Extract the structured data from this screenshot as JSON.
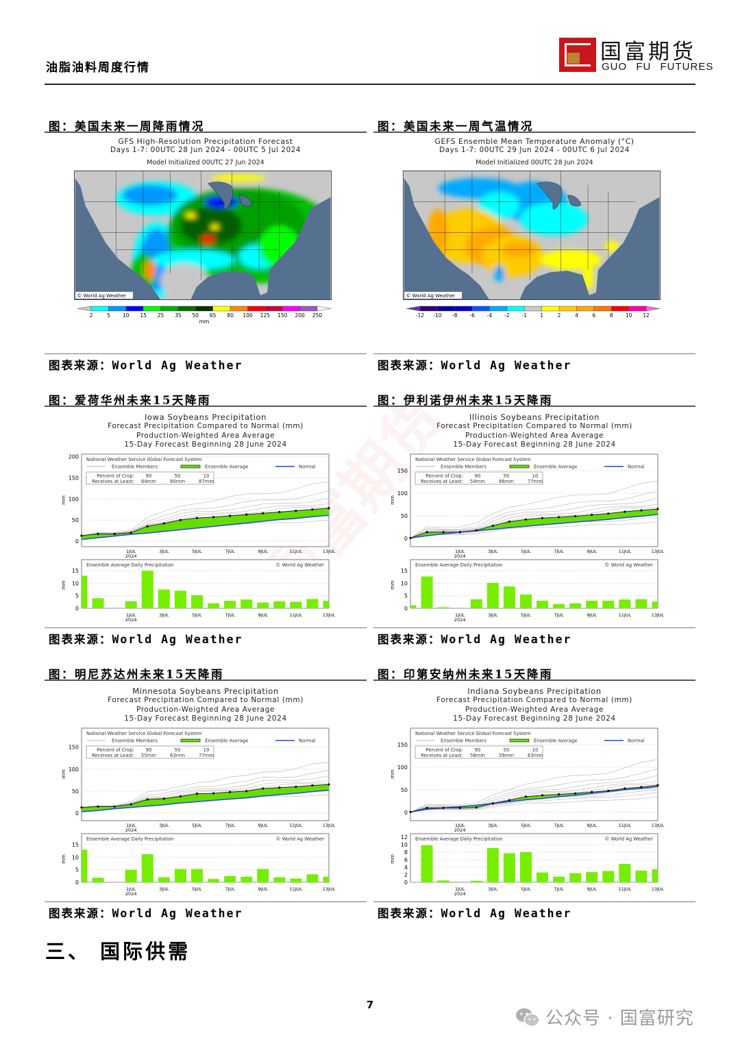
{
  "header": {
    "report_title": "油脂油料周度行情",
    "logo_cn": "国富期货",
    "logo_en": "GUO FU FUTURES",
    "brand_red": "#c8161d",
    "brand_gold": "#b8862e"
  },
  "figures": [
    {
      "caption": "图：美国未来一周降雨情况",
      "source": "图表来源：World Ag Weather",
      "map": {
        "title": "GFS High-Resolution Precipitation Forecast",
        "subtitle": "Days 1-7: 00UTC 28 Jun 2024 - 00UTC 5 Jul 2024",
        "init": "Model Initialized 00UTC 27 Jun 2024",
        "credit": "© World Ag Weather",
        "type": "precipitation"
      },
      "colorbar": {
        "labels": [
          "2",
          "5",
          "10",
          "15",
          "25",
          "35",
          "50",
          "65",
          "80",
          "100",
          "125",
          "150",
          "200",
          "250"
        ],
        "colors": [
          "#00ffff",
          "#0099ff",
          "#0000ff",
          "#00ff00",
          "#00b000",
          "#007000",
          "#003000",
          "#ffff00",
          "#ff8800",
          "#ff0000",
          "#cc0044",
          "#ff00ff",
          "#9955cc"
        ],
        "unit": "mm"
      }
    },
    {
      "caption": "图：美国未来一周气温情况",
      "source": "图表来源：World Ag Weather",
      "map": {
        "title": "GEFS Ensemble Mean Temperature Anomaly (°C)",
        "subtitle": "Days 1-7: 00UTC 29 Jun 2024 - 00UTC 6 Jul 2024",
        "init": "Model Initialized 00UTC 28 Jun 2024",
        "credit": "© World Ag Weather",
        "type": "temperature"
      },
      "colorbar": {
        "labels": [
          "-12",
          "-10",
          "-8",
          "-6",
          "-4",
          "-2",
          "-1",
          "1",
          "2",
          "4",
          "6",
          "8",
          "10",
          "12"
        ],
        "colors": [
          "#330077",
          "#000099",
          "#0000cc",
          "#0055ff",
          "#00aaff",
          "#00ffff",
          "#c8c8c8",
          "#ffff00",
          "#ffcc00",
          "#ffaa00",
          "#ff7700",
          "#ff0000",
          "#ff00aa"
        ],
        "unit": ""
      }
    }
  ],
  "chart_captions": [
    {
      "caption": "图：爱荷华州未来15天降雨",
      "source": "图表来源：World Ag Weather"
    },
    {
      "caption": "图：伊利诺伊州未来15天降雨",
      "source": "图表来源：World Ag Weather"
    },
    {
      "caption": "图：明尼苏达州未来15天降雨",
      "source": "图表来源：World Ag Weather"
    },
    {
      "caption": "图：印第安纳州未来15天降雨",
      "source": "图表来源：World Ag Weather"
    }
  ],
  "chart_common": {
    "x_ticks": [
      "1JUL",
      "3JUL",
      "5JUL",
      "7JUL",
      "9JUL",
      "11JUL",
      "13JUL"
    ],
    "x_tick_year": "2024",
    "ylabel": "mm",
    "legend_system": "National Weather Service Global Forecast System",
    "legend_members": "Ensemble Members",
    "legend_average": "Ensemble Average",
    "legend_normal": "Normal",
    "pct_label": "Percent of Crop:",
    "receives_label": "Receives at Least:",
    "daily_title": "Ensemble Average Daily Precipitation",
    "credit": "© World Ag Weather",
    "colors": {
      "average_fill": "#66dd00",
      "normal": "#2244ee",
      "members": "#bdbdbd",
      "bars": "#77ee00"
    }
  },
  "chart_data": [
    {
      "type": "line+bar",
      "title": "Iowa Soybeans Precipitation",
      "subtitle1": "Forecast Precipitation Compared to Normal (mm)",
      "subtitle2": "Production-Weighted Area Average",
      "subtitle3": "15-Day Forecast Beginning 28 June 2024",
      "dates": [
        "28JUN",
        "29JUN",
        "30JUN",
        "1JUL",
        "2JUL",
        "3JUL",
        "4JUL",
        "5JUL",
        "6JUL",
        "7JUL",
        "8JUL",
        "9JUL",
        "10JUL",
        "11JUL",
        "12JUL",
        "13JUL"
      ],
      "pct": [
        "90",
        "50",
        "10"
      ],
      "receives": [
        "64mm",
        "80mm",
        "87mm"
      ],
      "ensemble_average": [
        13,
        17,
        17,
        20,
        35,
        42,
        50,
        55,
        57,
        60,
        63,
        66,
        69,
        72,
        75,
        78
      ],
      "normal": [
        4,
        8,
        12,
        16,
        19,
        23,
        27,
        31,
        35,
        39,
        43,
        47,
        51,
        54,
        58,
        61
      ],
      "daily": [
        13,
        4,
        0,
        2.8,
        15,
        7.5,
        7,
        5.2,
        2,
        3,
        3.5,
        2.3,
        2.8,
        2.6,
        3.7,
        3
      ],
      "ylim": [
        -13,
        206
      ],
      "yticks": [
        0,
        50,
        100,
        150,
        200
      ],
      "daily_ylim": [
        0,
        19.4
      ],
      "daily_yticks": [
        0,
        5,
        10,
        15
      ]
    },
    {
      "type": "line+bar",
      "title": "Illinois Soybeans Precipitation",
      "subtitle1": "Forecast Precipitation Compared to Normal (mm)",
      "subtitle2": "Production-Weighted Area Average",
      "subtitle3": "15-Day Forecast Beginning 28 June 2024",
      "dates": [
        "28JUN",
        "29JUN",
        "30JUN",
        "1JUL",
        "2JUL",
        "3JUL",
        "4JUL",
        "5JUL",
        "6JUL",
        "7JUL",
        "8JUL",
        "9JUL",
        "10JUL",
        "11JUL",
        "12JUL",
        "13JUL"
      ],
      "pct": [
        "90",
        "50",
        "10"
      ],
      "receives": [
        "54mm",
        "66mm",
        "77mm"
      ],
      "ensemble_average": [
        1,
        14,
        14,
        14,
        18,
        28,
        37,
        42,
        45,
        47,
        49,
        52,
        55,
        59,
        62,
        65
      ],
      "normal": [
        1,
        6,
        10,
        14,
        17,
        20,
        24,
        27,
        30,
        33,
        36,
        39,
        42,
        46,
        49,
        53
      ],
      "daily": [
        1.2,
        12.7,
        0.4,
        0,
        3.6,
        10.1,
        8.7,
        5.5,
        3,
        1.7,
        2,
        3,
        3,
        3.5,
        3.6,
        2.7
      ],
      "ylim": [
        -18,
        186
      ],
      "yticks": [
        0,
        50,
        100,
        150
      ],
      "daily_ylim": [
        0,
        19.4
      ],
      "daily_yticks": [
        0,
        5,
        10,
        15
      ]
    },
    {
      "type": "line+bar",
      "title": "Minnesota Soybeans Precipitation",
      "subtitle1": "Forecast Precipitation Compared to Normal (mm)",
      "subtitle2": "Production-Weighted Area Average",
      "subtitle3": "15-Day Forecast Beginning 28 June 2024",
      "dates": [
        "28JUN",
        "29JUN",
        "30JUN",
        "1JUL",
        "2JUL",
        "3JUL",
        "4JUL",
        "5JUL",
        "6JUL",
        "7JUL",
        "8JUL",
        "9JUL",
        "10JUL",
        "11JUL",
        "12JUL",
        "13JUL"
      ],
      "pct": [
        "90",
        "50",
        "10"
      ],
      "receives": [
        "55mm",
        "63mm",
        "77mm"
      ],
      "ensemble_average": [
        13,
        15,
        15,
        20,
        31,
        33,
        38,
        44,
        45,
        48,
        50,
        56,
        58,
        60,
        63,
        65
      ],
      "normal": [
        3,
        6,
        10,
        13,
        16,
        19,
        23,
        26,
        29,
        32,
        35,
        39,
        42,
        45,
        49,
        52
      ],
      "daily": [
        13,
        1.8,
        0,
        5,
        11.2,
        2,
        5.3,
        5.3,
        1.3,
        2.5,
        2.2,
        5.3,
        2,
        1.5,
        3.2,
        2.2
      ],
      "ylim": [
        -17,
        193
      ],
      "yticks": [
        0,
        50,
        100,
        150
      ],
      "daily_ylim": [
        0,
        19.4
      ],
      "daily_yticks": [
        0,
        5,
        10,
        15
      ]
    },
    {
      "type": "line+bar",
      "title": "Indiana Soybeans Precipitation",
      "subtitle1": "Forecast Precipitation Compared to Normal (mm)",
      "subtitle2": "Production-Weighted Area Average",
      "subtitle3": "15-Day Forecast Beginning 28 June 2024",
      "dates": [
        "28JUN",
        "29JUN",
        "30JUN",
        "1JUL",
        "2JUL",
        "3JUL",
        "4JUL",
        "5JUL",
        "6JUL",
        "7JUL",
        "8JUL",
        "9JUL",
        "10JUL",
        "11JUL",
        "12JUL",
        "13JUL"
      ],
      "pct": [
        "90",
        "50",
        "10"
      ],
      "receives": [
        "58mm",
        "59mm",
        "63mm"
      ],
      "ensemble_average": [
        1,
        10,
        10,
        10,
        11,
        20,
        27,
        35,
        38,
        40,
        42,
        45,
        48,
        53,
        56,
        60
      ],
      "normal": [
        1,
        7,
        10,
        13,
        16,
        20,
        24,
        28,
        31,
        35,
        38,
        42,
        46,
        50,
        53,
        57
      ],
      "daily": [
        0,
        9.8,
        0.5,
        0,
        0.4,
        9.1,
        7.7,
        8,
        2.6,
        1.5,
        2.4,
        2.7,
        3,
        4.9,
        3.1,
        3.5
      ],
      "ylim": [
        -18,
        186
      ],
      "yticks": [
        0,
        50,
        100,
        150
      ],
      "daily_ylim": [
        0,
        12.9
      ],
      "daily_yticks": [
        0,
        2,
        4,
        6,
        8,
        10,
        12
      ]
    }
  ],
  "section": {
    "heading": "三、 国际供需"
  },
  "footer": {
    "page_number": "7",
    "watermark": "公众号 · 国富研究"
  }
}
